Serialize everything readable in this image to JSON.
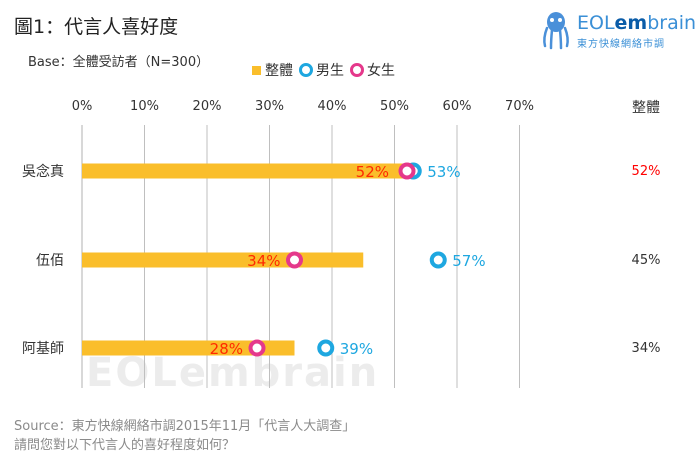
{
  "title": "圖1：代言人喜好度",
  "subtitle": "Base：全體受訪者（N=300）",
  "legend": {
    "total": "整體",
    "male": "男生",
    "female": "女生"
  },
  "logo": {
    "brand_eol": "EOL",
    "brand_em": "em",
    "brand_rest": "brain",
    "tagline": "東方快線網絡市調"
  },
  "watermark": "EOLembrain",
  "source": {
    "line1": "Source：東方快線網絡市調2015年11月「代言人大調查」",
    "line2": "請問您對以下代言人的喜好程度如何？"
  },
  "colors": {
    "total": "#FABE2B",
    "male": "#1EA7E0",
    "female": "#E5388B",
    "grid": "#BFBFBF",
    "total_label_top": "#FF0000",
    "total_label": "#333333"
  },
  "chart_data": {
    "type": "bar",
    "orientation": "horizontal",
    "xlim": [
      0,
      70
    ],
    "ticks": [
      "0%",
      "10%",
      "20%",
      "30%",
      "40%",
      "50%",
      "60%",
      "70%"
    ],
    "total_header": "整體",
    "categories": [
      "吳念真",
      "伍佰",
      "阿基師"
    ],
    "series": [
      {
        "name": "整體",
        "kind": "bar",
        "values": [
          52,
          45,
          34
        ],
        "bar_labels": [
          "52%",
          "",
          ""
        ],
        "side_labels": [
          "52%",
          "45%",
          "34%"
        ]
      },
      {
        "name": "男生",
        "kind": "ring",
        "values": [
          53,
          57,
          39
        ],
        "labels": [
          "53%",
          "57%",
          "39%"
        ]
      },
      {
        "name": "女生",
        "kind": "ring",
        "values": [
          52,
          34,
          28
        ],
        "labels": [
          "",
          "34%",
          "28%"
        ]
      }
    ]
  }
}
